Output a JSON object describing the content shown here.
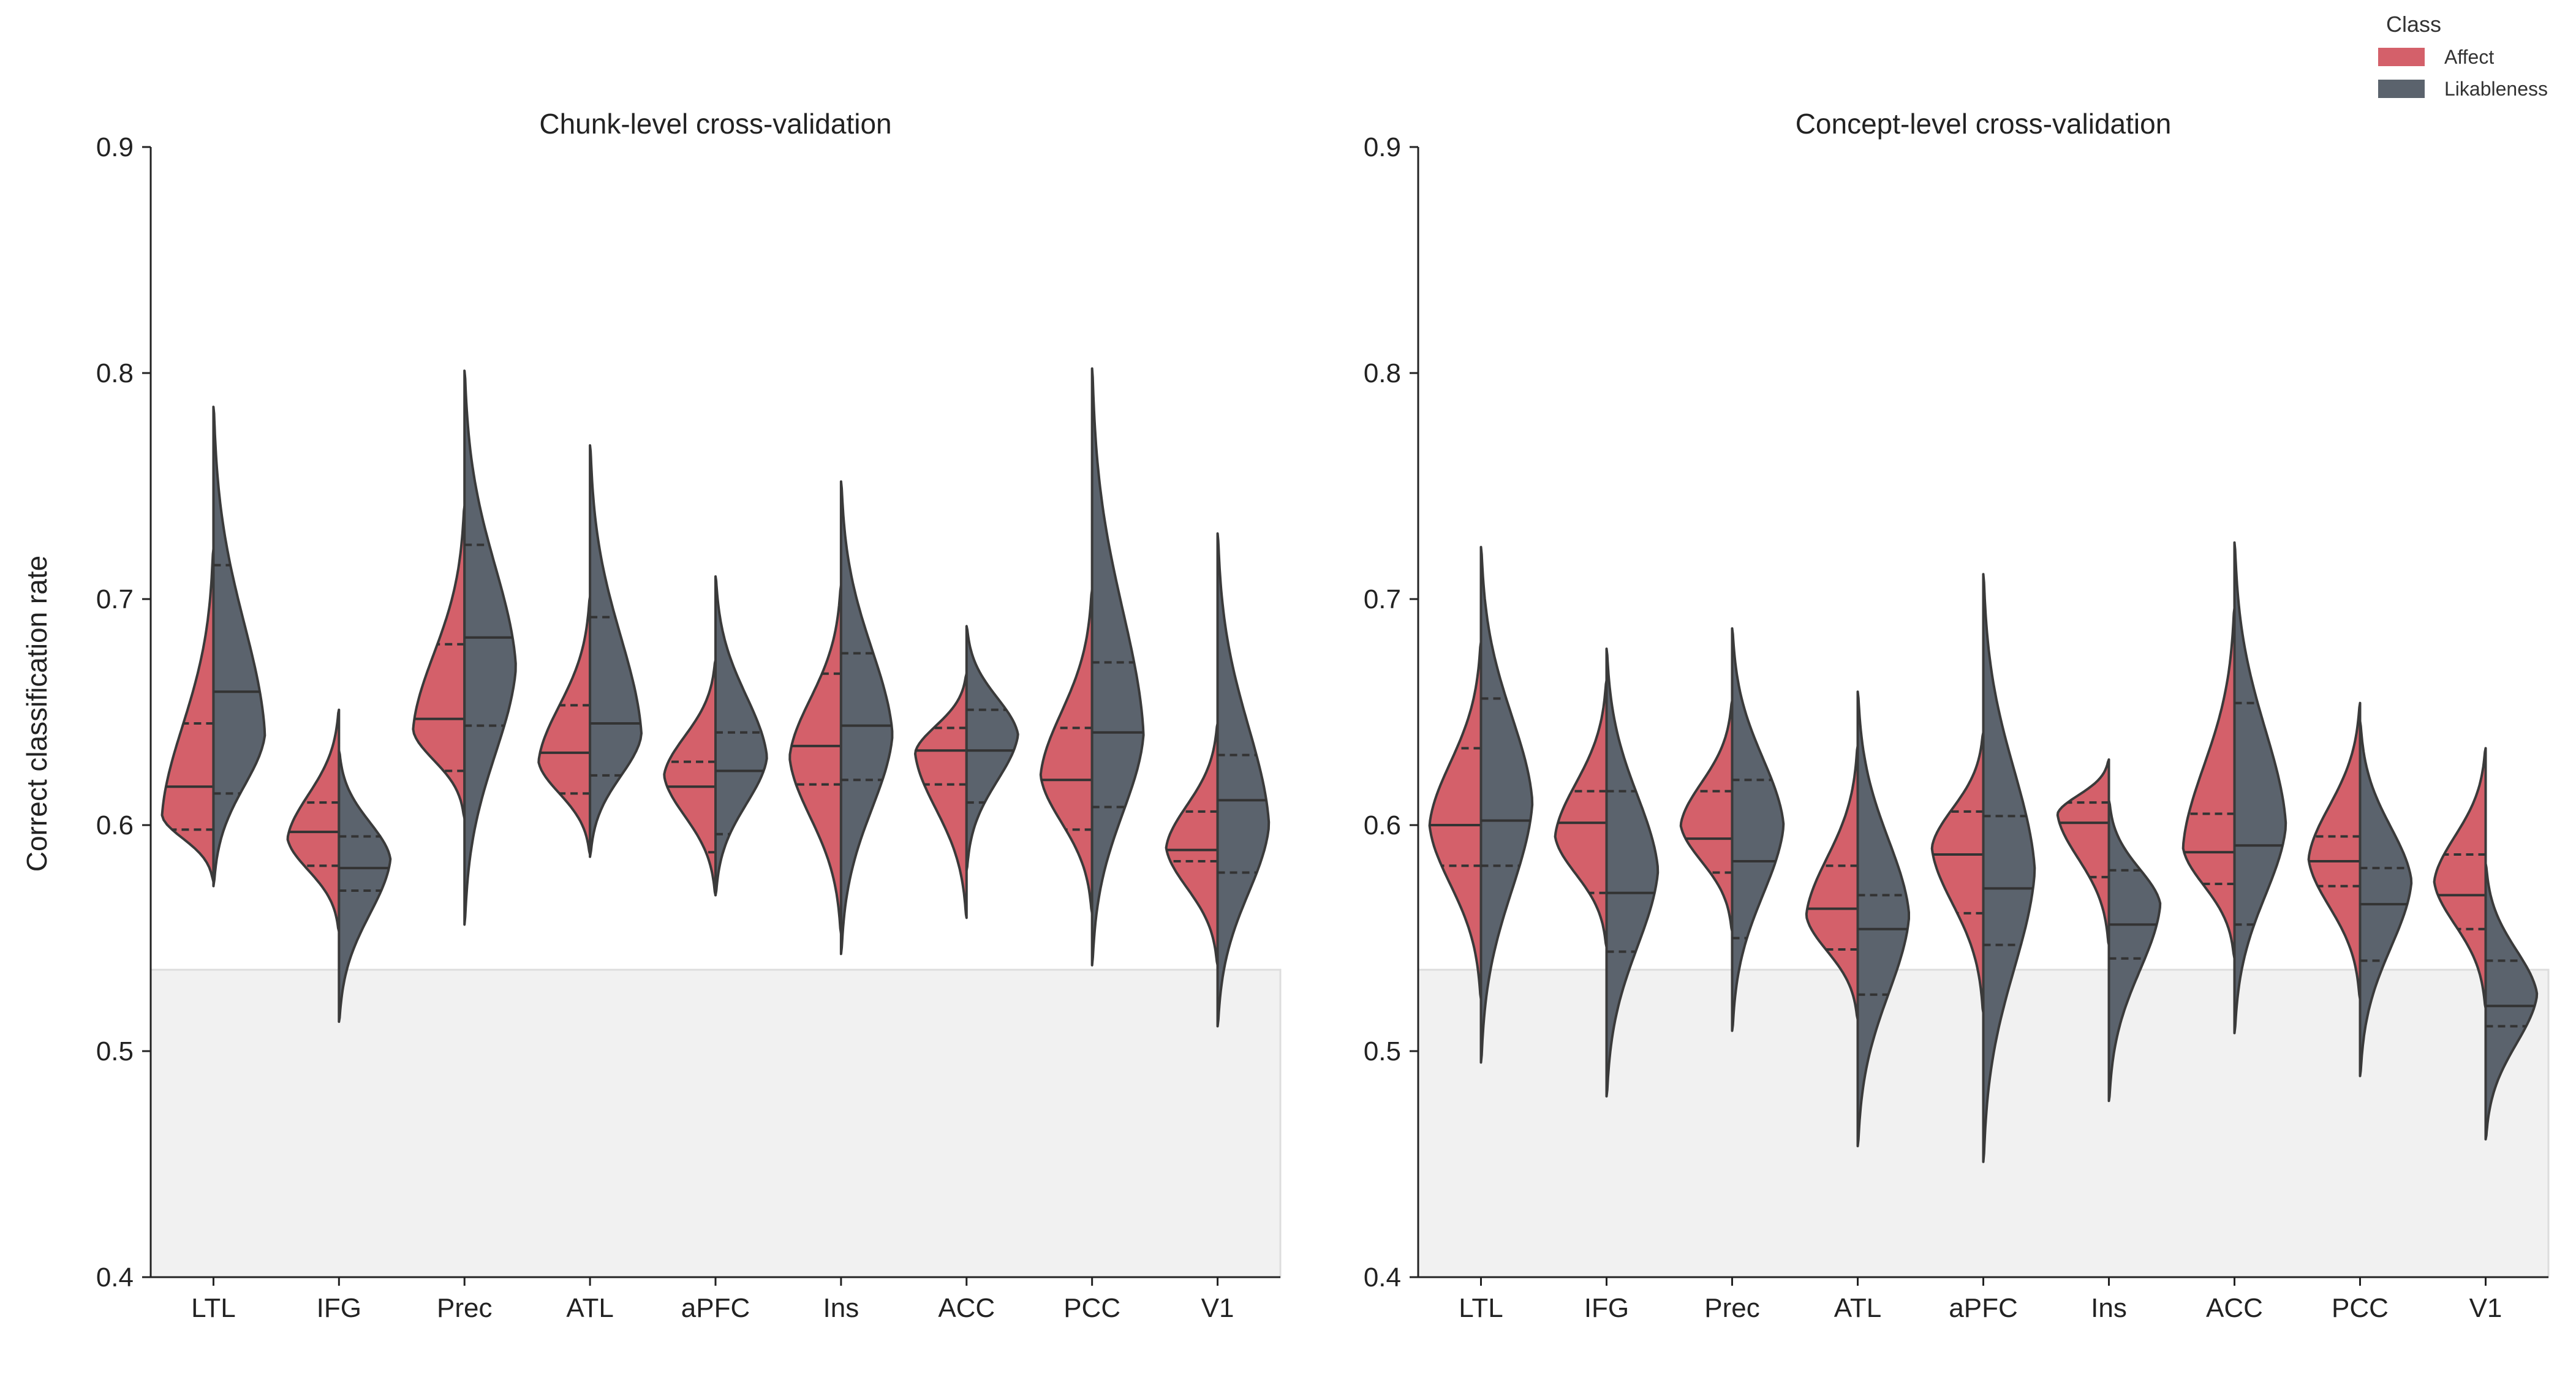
{
  "legend": {
    "title": "Class",
    "entries": [
      {
        "label": "Affect",
        "color": "#d4606a"
      },
      {
        "label": "Likableness",
        "color": "#5b636d"
      }
    ]
  },
  "y_axis_label": "Correct classification rate",
  "chance_band_upper": 0.536,
  "chart_data": [
    {
      "type": "violin",
      "title": "Chunk-level cross-validation",
      "categories": [
        "LTL",
        "IFG",
        "Prec",
        "ATL",
        "aPFC",
        "Ins",
        "ACC",
        "PCC",
        "V1"
      ],
      "ylim": [
        0.4,
        0.9
      ],
      "yticks": [
        0.4,
        0.5,
        0.6,
        0.7,
        0.8,
        0.9
      ],
      "series": [
        {
          "name": "Affect",
          "color": "#d4606a",
          "violins": [
            {
              "min": 0.575,
              "max": 0.722,
              "mode": 0.604,
              "q1": 0.598,
              "median": 0.617,
              "q3": 0.645
            },
            {
              "min": 0.553,
              "max": 0.651,
              "mode": 0.594,
              "q1": 0.582,
              "median": 0.597,
              "q3": 0.61
            },
            {
              "min": 0.603,
              "max": 0.741,
              "mode": 0.642,
              "q1": 0.624,
              "median": 0.647,
              "q3": 0.68
            },
            {
              "min": 0.587,
              "max": 0.701,
              "mode": 0.628,
              "q1": 0.614,
              "median": 0.632,
              "q3": 0.653
            },
            {
              "min": 0.569,
              "max": 0.673,
              "mode": 0.622,
              "q1": 0.588,
              "median": 0.617,
              "q3": 0.628
            },
            {
              "min": 0.552,
              "max": 0.706,
              "mode": 0.63,
              "q1": 0.618,
              "median": 0.635,
              "q3": 0.667
            },
            {
              "min": 0.559,
              "max": 0.667,
              "mode": 0.632,
              "q1": 0.618,
              "median": 0.633,
              "q3": 0.643
            },
            {
              "min": 0.561,
              "max": 0.704,
              "mode": 0.622,
              "q1": 0.598,
              "median": 0.62,
              "q3": 0.643
            },
            {
              "min": 0.538,
              "max": 0.645,
              "mode": 0.59,
              "q1": 0.584,
              "median": 0.589,
              "q3": 0.606
            }
          ]
        },
        {
          "name": "Likableness",
          "color": "#5b636d",
          "violins": [
            {
              "min": 0.573,
              "max": 0.785,
              "mode": 0.64,
              "q1": 0.614,
              "median": 0.659,
              "q3": 0.715
            },
            {
              "min": 0.513,
              "max": 0.633,
              "mode": 0.585,
              "q1": 0.571,
              "median": 0.581,
              "q3": 0.595
            },
            {
              "min": 0.556,
              "max": 0.801,
              "mode": 0.67,
              "q1": 0.644,
              "median": 0.683,
              "q3": 0.724
            },
            {
              "min": 0.586,
              "max": 0.768,
              "mode": 0.64,
              "q1": 0.622,
              "median": 0.645,
              "q3": 0.692
            },
            {
              "min": 0.569,
              "max": 0.71,
              "mode": 0.63,
              "q1": 0.596,
              "median": 0.624,
              "q3": 0.641
            },
            {
              "min": 0.543,
              "max": 0.752,
              "mode": 0.64,
              "q1": 0.62,
              "median": 0.644,
              "q3": 0.676
            },
            {
              "min": 0.58,
              "max": 0.688,
              "mode": 0.64,
              "q1": 0.61,
              "median": 0.633,
              "q3": 0.651
            },
            {
              "min": 0.538,
              "max": 0.802,
              "mode": 0.64,
              "q1": 0.608,
              "median": 0.641,
              "q3": 0.672
            },
            {
              "min": 0.511,
              "max": 0.729,
              "mode": 0.6,
              "q1": 0.579,
              "median": 0.611,
              "q3": 0.631
            }
          ]
        }
      ]
    },
    {
      "type": "violin",
      "title": "Concept-level cross-validation",
      "categories": [
        "LTL",
        "IFG",
        "Prec",
        "ATL",
        "aPFC",
        "Ins",
        "ACC",
        "PCC",
        "V1"
      ],
      "ylim": [
        0.4,
        0.9
      ],
      "yticks": [
        0.4,
        0.5,
        0.6,
        0.7,
        0.8,
        0.9
      ],
      "series": [
        {
          "name": "Affect",
          "color": "#d4606a",
          "violins": [
            {
              "min": 0.523,
              "max": 0.681,
              "mode": 0.6,
              "q1": 0.582,
              "median": 0.6,
              "q3": 0.634
            },
            {
              "min": 0.546,
              "max": 0.664,
              "mode": 0.595,
              "q1": 0.57,
              "median": 0.601,
              "q3": 0.615
            },
            {
              "min": 0.553,
              "max": 0.655,
              "mode": 0.6,
              "q1": 0.579,
              "median": 0.594,
              "q3": 0.615
            },
            {
              "min": 0.514,
              "max": 0.635,
              "mode": 0.56,
              "q1": 0.545,
              "median": 0.563,
              "q3": 0.582
            },
            {
              "min": 0.517,
              "max": 0.641,
              "mode": 0.59,
              "q1": 0.561,
              "median": 0.587,
              "q3": 0.606
            },
            {
              "min": 0.547,
              "max": 0.629,
              "mode": 0.605,
              "q1": 0.577,
              "median": 0.601,
              "q3": 0.61
            },
            {
              "min": 0.541,
              "max": 0.696,
              "mode": 0.59,
              "q1": 0.574,
              "median": 0.588,
              "q3": 0.605
            },
            {
              "min": 0.523,
              "max": 0.654,
              "mode": 0.585,
              "q1": 0.573,
              "median": 0.584,
              "q3": 0.595
            },
            {
              "min": 0.519,
              "max": 0.634,
              "mode": 0.575,
              "q1": 0.554,
              "median": 0.569,
              "q3": 0.587
            }
          ]
        },
        {
          "name": "Likableness",
          "color": "#5b636d",
          "violins": [
            {
              "min": 0.495,
              "max": 0.723,
              "mode": 0.61,
              "q1": 0.582,
              "median": 0.602,
              "q3": 0.656
            },
            {
              "min": 0.48,
              "max": 0.678,
              "mode": 0.58,
              "q1": 0.544,
              "median": 0.57,
              "q3": 0.615
            },
            {
              "min": 0.509,
              "max": 0.687,
              "mode": 0.6,
              "q1": 0.55,
              "median": 0.584,
              "q3": 0.62
            },
            {
              "min": 0.458,
              "max": 0.659,
              "mode": 0.56,
              "q1": 0.525,
              "median": 0.554,
              "q3": 0.569
            },
            {
              "min": 0.451,
              "max": 0.711,
              "mode": 0.58,
              "q1": 0.547,
              "median": 0.572,
              "q3": 0.604
            },
            {
              "min": 0.478,
              "max": 0.611,
              "mode": 0.565,
              "q1": 0.541,
              "median": 0.556,
              "q3": 0.58
            },
            {
              "min": 0.508,
              "max": 0.725,
              "mode": 0.6,
              "q1": 0.556,
              "median": 0.591,
              "q3": 0.654
            },
            {
              "min": 0.489,
              "max": 0.646,
              "mode": 0.575,
              "q1": 0.54,
              "median": 0.565,
              "q3": 0.581
            },
            {
              "min": 0.461,
              "max": 0.583,
              "mode": 0.525,
              "q1": 0.511,
              "median": 0.52,
              "q3": 0.54
            }
          ]
        }
      ]
    }
  ]
}
